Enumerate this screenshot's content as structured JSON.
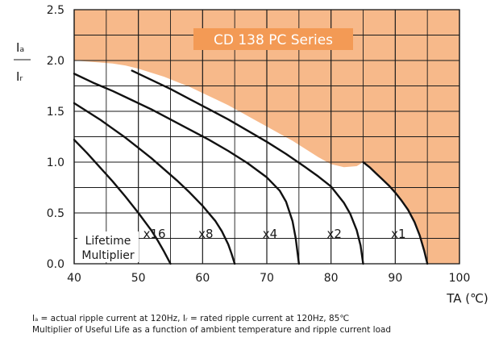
{
  "chart_data": {
    "type": "line",
    "title": "CD 138 PC Series",
    "xlabel": "TA (℃)",
    "ylabel_numerator": "Iₐ",
    "ylabel_denominator": "Iᵣ",
    "xlim": [
      40,
      100
    ],
    "ylim": [
      0,
      2.5
    ],
    "xticks": [
      "40",
      "50",
      "60",
      "70",
      "80",
      "90",
      "100"
    ],
    "yticks": [
      "0.0",
      "0.5",
      "1.0",
      "1.5",
      "2.0",
      "2.5"
    ],
    "grid": true,
    "shaded_region": {
      "description_color": "#f7b98a",
      "boundary": [
        [
          40,
          2.0
        ],
        [
          42,
          1.99
        ],
        [
          44,
          1.98
        ],
        [
          46,
          1.97
        ],
        [
          48,
          1.95
        ],
        [
          50,
          1.92
        ],
        [
          52,
          1.88
        ],
        [
          54,
          1.84
        ],
        [
          56,
          1.79
        ],
        [
          58,
          1.74
        ],
        [
          60,
          1.68
        ],
        [
          62,
          1.62
        ],
        [
          64,
          1.56
        ],
        [
          66,
          1.49
        ],
        [
          68,
          1.42
        ],
        [
          70,
          1.35
        ],
        [
          72,
          1.28
        ],
        [
          74,
          1.21
        ],
        [
          76,
          1.13
        ],
        [
          78,
          1.05
        ],
        [
          80,
          0.98
        ],
        [
          82,
          0.95
        ],
        [
          84,
          0.96
        ],
        [
          85,
          1.0
        ],
        [
          87,
          0.9
        ],
        [
          89,
          0.78
        ],
        [
          91,
          0.62
        ],
        [
          93,
          0.4
        ],
        [
          94,
          0.22
        ],
        [
          95,
          0.0
        ]
      ]
    },
    "series": [
      {
        "name": "x16",
        "x": [
          40,
          42,
          44,
          46,
          48,
          50,
          52,
          53,
          54,
          54.5,
          55
        ],
        "y": [
          1.22,
          1.09,
          0.95,
          0.81,
          0.66,
          0.5,
          0.33,
          0.23,
          0.12,
          0.06,
          0.0
        ]
      },
      {
        "name": "x8",
        "x": [
          40,
          42,
          44,
          46,
          48,
          50,
          52,
          54,
          56,
          58,
          60,
          62,
          63,
          64,
          64.5,
          65
        ],
        "y": [
          1.58,
          1.5,
          1.42,
          1.33,
          1.24,
          1.14,
          1.04,
          0.93,
          0.82,
          0.7,
          0.57,
          0.42,
          0.32,
          0.19,
          0.1,
          0.0
        ]
      },
      {
        "name": "x4",
        "x": [
          40,
          43,
          46,
          49,
          52,
          55,
          58,
          61,
          64,
          67,
          70,
          72,
          73,
          74,
          74.5,
          75
        ],
        "y": [
          1.87,
          1.78,
          1.7,
          1.61,
          1.52,
          1.42,
          1.32,
          1.22,
          1.11,
          0.99,
          0.85,
          0.72,
          0.61,
          0.42,
          0.25,
          0.0
        ]
      },
      {
        "name": "x2",
        "x": [
          49,
          52,
          55,
          58,
          61,
          64,
          67,
          70,
          73,
          76,
          78,
          80,
          82,
          83,
          84,
          84.6,
          85
        ],
        "y": [
          1.9,
          1.81,
          1.72,
          1.62,
          1.52,
          1.42,
          1.31,
          1.2,
          1.08,
          0.95,
          0.86,
          0.76,
          0.6,
          0.49,
          0.33,
          0.18,
          0.0
        ]
      },
      {
        "name": "x1",
        "x": [
          85,
          86,
          87,
          88,
          89,
          90,
          91,
          92,
          93,
          93.8,
          94.5,
          95
        ],
        "y": [
          1.0,
          0.95,
          0.89,
          0.83,
          0.77,
          0.7,
          0.62,
          0.53,
          0.41,
          0.28,
          0.13,
          0.0
        ]
      }
    ],
    "curve_labels": [
      {
        "text": "x16",
        "x": 52.5,
        "y": 0.3
      },
      {
        "text": "x8",
        "x": 60.5,
        "y": 0.3
      },
      {
        "text": "x4",
        "x": 70.5,
        "y": 0.3
      },
      {
        "text": "x2",
        "x": 80.5,
        "y": 0.3
      },
      {
        "text": "x1",
        "x": 90.5,
        "y": 0.3
      }
    ],
    "multiplier_note": [
      "Lifetime",
      "Multiplier"
    ],
    "colors": {
      "shade": "#f7b98a",
      "title_box": "#f39a55",
      "curve": "#111111",
      "grid": "#1a1a1a"
    }
  },
  "footnotes": {
    "line1": "Iₐ = actual ripple current at 120Hz, Iᵣ = rated ripple current at 120Hz, 85℃",
    "line2": "Multiplier of Useful Life as a function of ambient temperature and ripple current load"
  }
}
